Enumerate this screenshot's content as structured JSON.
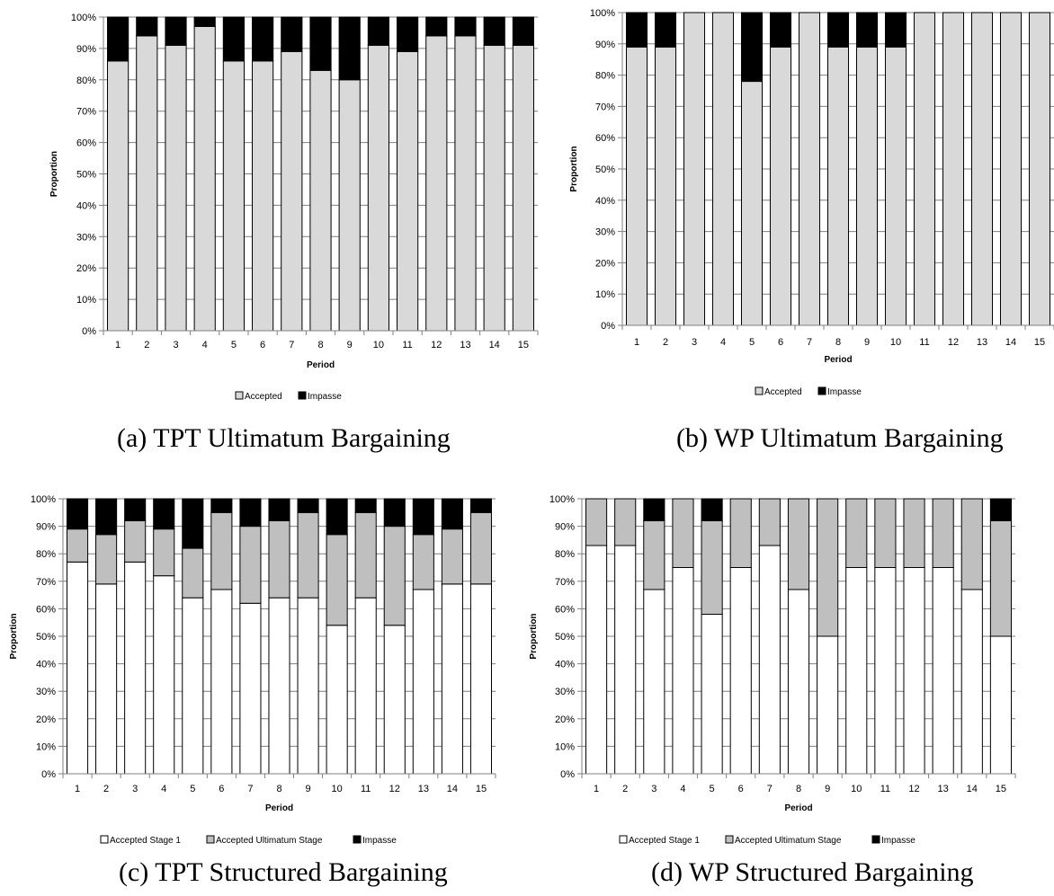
{
  "chart_data": [
    {
      "type": "bar",
      "caption": "(a)  TPT Ultimatum Bargaining",
      "xlabel": "Period",
      "ylabel": "Proportion",
      "ylim": [
        0,
        100
      ],
      "yticks": [
        "0%",
        "10%",
        "20%",
        "30%",
        "40%",
        "50%",
        "60%",
        "70%",
        "80%",
        "90%",
        "100%"
      ],
      "categories": [
        "1",
        "2",
        "3",
        "4",
        "5",
        "6",
        "7",
        "8",
        "9",
        "10",
        "11",
        "12",
        "13",
        "14",
        "15"
      ],
      "stacked": true,
      "legend_position": "bottom",
      "series": [
        {
          "name": "Accepted",
          "color": "#d9d9d9",
          "values": [
            86,
            94,
            91,
            97,
            86,
            86,
            89,
            83,
            80,
            91,
            89,
            94,
            94,
            91,
            91
          ]
        },
        {
          "name": "Impasse",
          "color": "#000000",
          "values": [
            14,
            6,
            9,
            3,
            14,
            14,
            11,
            17,
            20,
            9,
            11,
            6,
            6,
            9,
            9
          ]
        }
      ]
    },
    {
      "type": "bar",
      "caption": "(b) WP Ultimatum Bargaining",
      "xlabel": "Period",
      "ylabel": "Proportion",
      "ylim": [
        0,
        100
      ],
      "yticks": [
        "0%",
        "10%",
        "20%",
        "30%",
        "40%",
        "50%",
        "60%",
        "70%",
        "80%",
        "90%",
        "100%"
      ],
      "categories": [
        "1",
        "2",
        "3",
        "4",
        "5",
        "6",
        "7",
        "8",
        "9",
        "10",
        "11",
        "12",
        "13",
        "14",
        "15"
      ],
      "stacked": true,
      "legend_position": "bottom",
      "series": [
        {
          "name": "Accepted",
          "color": "#d9d9d9",
          "values": [
            89,
            89,
            100,
            100,
            78,
            89,
            100,
            89,
            89,
            89,
            100,
            100,
            100,
            100,
            100
          ]
        },
        {
          "name": "Impasse",
          "color": "#000000",
          "values": [
            11,
            11,
            0,
            0,
            22,
            11,
            0,
            11,
            11,
            11,
            0,
            0,
            0,
            0,
            0
          ]
        }
      ]
    },
    {
      "type": "bar",
      "caption": "(c) TPT Structured Bargaining",
      "xlabel": "Period",
      "ylabel": "Proportion",
      "ylim": [
        0,
        100
      ],
      "yticks": [
        "0%",
        "10%",
        "20%",
        "30%",
        "40%",
        "50%",
        "60%",
        "70%",
        "80%",
        "90%",
        "100%"
      ],
      "categories": [
        "1",
        "2",
        "3",
        "4",
        "5",
        "6",
        "7",
        "8",
        "9",
        "10",
        "11",
        "12",
        "13",
        "14",
        "15"
      ],
      "stacked": true,
      "legend_position": "bottom",
      "series": [
        {
          "name": "Accepted Stage 1",
          "color": "#ffffff",
          "values": [
            77,
            69,
            77,
            72,
            64,
            67,
            62,
            64,
            64,
            54,
            64,
            54,
            67,
            69,
            69
          ]
        },
        {
          "name": "Accepted Ultimatum Stage",
          "color": "#bfbfbf",
          "values": [
            12,
            18,
            15,
            17,
            18,
            28,
            28,
            28,
            31,
            33,
            31,
            36,
            20,
            20,
            26
          ]
        },
        {
          "name": "Impasse",
          "color": "#000000",
          "values": [
            11,
            13,
            8,
            11,
            18,
            5,
            10,
            8,
            5,
            13,
            5,
            10,
            13,
            11,
            5
          ]
        }
      ]
    },
    {
      "type": "bar",
      "caption": "(d) WP Structured Bargaining",
      "xlabel": "Period",
      "ylabel": "Proportion",
      "ylim": [
        0,
        100
      ],
      "yticks": [
        "0%",
        "10%",
        "20%",
        "30%",
        "40%",
        "50%",
        "60%",
        "70%",
        "80%",
        "90%",
        "100%"
      ],
      "categories": [
        "1",
        "2",
        "3",
        "4",
        "5",
        "6",
        "7",
        "8",
        "9",
        "10",
        "11",
        "12",
        "13",
        "14",
        "15"
      ],
      "stacked": true,
      "legend_position": "bottom",
      "series": [
        {
          "name": "Accepted Stage 1",
          "color": "#ffffff",
          "values": [
            83,
            83,
            67,
            75,
            58,
            75,
            83,
            67,
            50,
            75,
            75,
            75,
            75,
            67,
            50
          ]
        },
        {
          "name": "Accepted Ultimatum Stage",
          "color": "#bfbfbf",
          "values": [
            17,
            17,
            25,
            25,
            34,
            25,
            17,
            33,
            50,
            25,
            25,
            25,
            25,
            33,
            42
          ]
        },
        {
          "name": "Impasse",
          "color": "#000000",
          "values": [
            0,
            0,
            8,
            0,
            8,
            0,
            0,
            0,
            0,
            0,
            0,
            0,
            0,
            0,
            8
          ]
        }
      ]
    }
  ]
}
